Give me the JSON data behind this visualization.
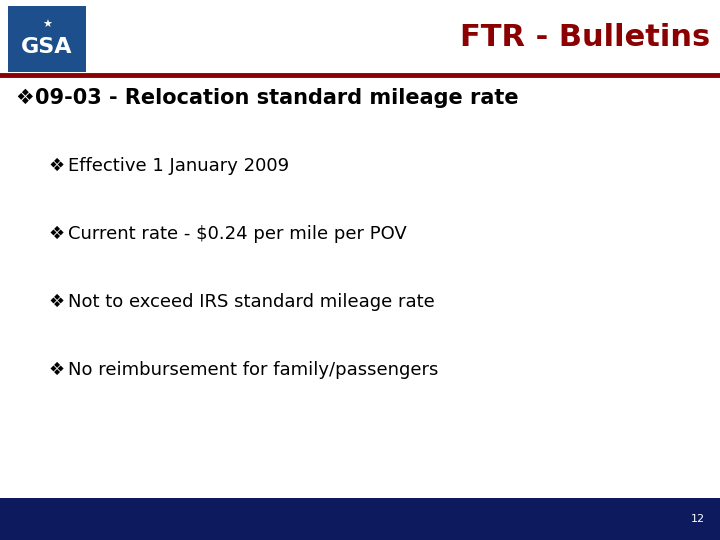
{
  "title": "FTR - Bulletins",
  "title_color": "#8B0000",
  "title_fontsize": 22,
  "gsa_box_color": "#1C4F8C",
  "gsa_text": "GSA",
  "separator_color": "#8B0000",
  "footer_bg_color": "#0D1B5E",
  "footer_page_number": "12",
  "footer_text_color": "#FFFFFF",
  "main_bullet": "09-03 - Relocation standard mileage rate",
  "main_bullet_fontsize": 15,
  "main_bullet_color": "#000000",
  "sub_bullets": [
    "Effective 1 January 2009",
    "Current rate - $0.24 per mile per POV",
    "Not to exceed IRS standard mileage rate",
    "No reimbursement for family/passengers"
  ],
  "sub_bullet_fontsize": 13,
  "sub_bullet_color": "#000000",
  "background_color": "#FFFFFF",
  "bullet_symbol": "❖"
}
